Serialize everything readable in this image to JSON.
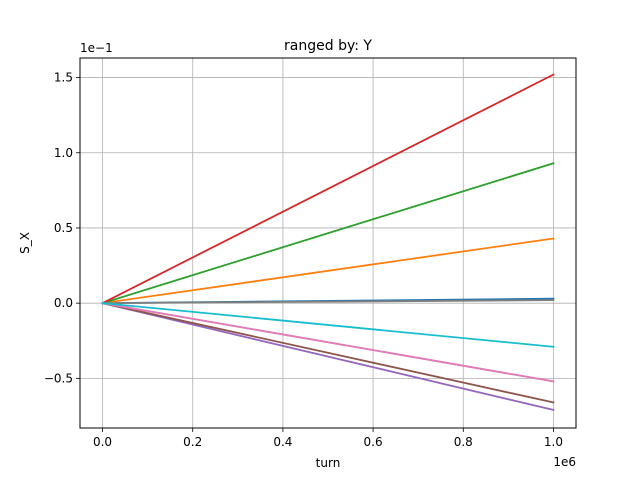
{
  "chart_data": {
    "type": "line",
    "title": "ranged by: Y",
    "xlabel": "turn",
    "ylabel": "S_X",
    "x_offset_label": "1e6",
    "y_offset_label": "1e−1",
    "xlim": [
      -0.05,
      1.05
    ],
    "ylim": [
      -0.83,
      1.63
    ],
    "x_ticks": [
      0.0,
      0.2,
      0.4,
      0.6,
      0.8,
      1.0
    ],
    "x_tick_labels": [
      "0.0",
      "0.2",
      "0.4",
      "0.6",
      "0.8",
      "1.0"
    ],
    "y_ticks": [
      -0.5,
      0.0,
      0.5,
      1.0,
      1.5
    ],
    "y_tick_labels": [
      "−0.5",
      "0.0",
      "0.5",
      "1.0",
      "1.5"
    ],
    "grid": true,
    "series": [
      {
        "x": [
          0.0,
          1.0
        ],
        "y": [
          0.0,
          0.03
        ],
        "color": "#1f77b4"
      },
      {
        "x": [
          0.0,
          1.0
        ],
        "y": [
          0.0,
          0.43
        ],
        "color": "#ff7f0e"
      },
      {
        "x": [
          0.0,
          1.0
        ],
        "y": [
          0.0,
          0.93
        ],
        "color": "#2ca02c"
      },
      {
        "x": [
          0.0,
          1.0
        ],
        "y": [
          0.0,
          1.52
        ],
        "color": "#d62728"
      },
      {
        "x": [
          0.0,
          1.0
        ],
        "y": [
          0.0,
          -0.71
        ],
        "color": "#9467bd"
      },
      {
        "x": [
          0.0,
          1.0
        ],
        "y": [
          0.0,
          -0.66
        ],
        "color": "#8c564b"
      },
      {
        "x": [
          0.0,
          1.0
        ],
        "y": [
          0.0,
          0.02
        ],
        "color": "#7f7f7f"
      },
      {
        "x": [
          0.0,
          1.0
        ],
        "y": [
          0.0,
          -0.52
        ],
        "color": "#bcbd22"
      },
      {
        "x": [
          0.0,
          1.0
        ],
        "y": [
          0.0,
          -0.52
        ],
        "color": "#e377c2"
      },
      {
        "x": [
          0.0,
          1.0
        ],
        "y": [
          0.0,
          -0.29
        ],
        "color": "#17becf"
      }
    ]
  }
}
